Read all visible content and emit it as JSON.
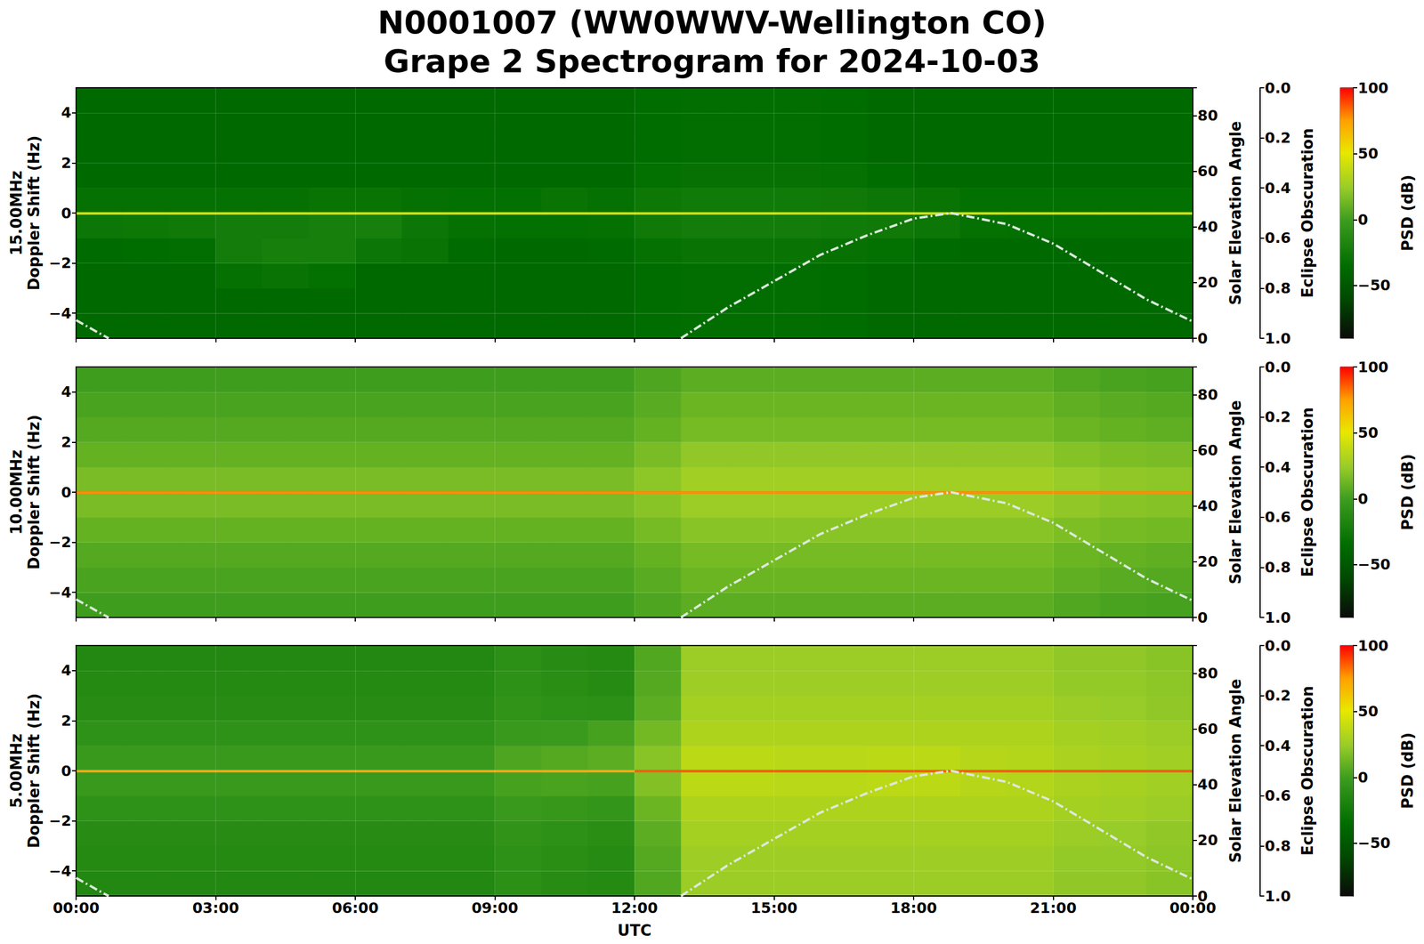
{
  "chart_data": {
    "type": "heatmap",
    "title": "N0001007 (WW0WWV-Wellington CO)",
    "subtitle": "Grape 2 Spectrogram for 2024-10-03",
    "x_edges": [
      0,
      1,
      2,
      3,
      4,
      5,
      6,
      7,
      8,
      9,
      10,
      11,
      12,
      13,
      14,
      15,
      16,
      17,
      18,
      19,
      20,
      21,
      22,
      23,
      24
    ],
    "y_edges": [
      -5,
      -4,
      -3,
      -2,
      -1,
      -0.05,
      0.05,
      1,
      2,
      3,
      4,
      5
    ],
    "xlim": [
      0,
      24
    ],
    "xticks": [
      {
        "value": 0,
        "label": "00:00"
      },
      {
        "value": 3,
        "label": "03:00"
      },
      {
        "value": 6,
        "label": "06:00"
      },
      {
        "value": 9,
        "label": "09:00"
      },
      {
        "value": 12,
        "label": "12:00"
      },
      {
        "value": 15,
        "label": "15:00"
      },
      {
        "value": 18,
        "label": "18:00"
      },
      {
        "value": 21,
        "label": "21:00"
      },
      {
        "value": 24,
        "label": "00:00"
      }
    ],
    "ylim": [
      -5,
      5
    ],
    "yticks": [
      {
        "value": -4,
        "label": "−4"
      },
      {
        "value": -2,
        "label": "−2"
      },
      0,
      2,
      4
    ],
    "ylabel": "Doppler Shift (Hz)",
    "y2label": "Solar Elevation Angle",
    "y2lim": [
      0,
      90
    ],
    "y2ticks": [
      0,
      20,
      40,
      60,
      80
    ],
    "y3label": "Eclipse Obscuration",
    "y3lim": [
      1,
      0
    ],
    "y3ticks": [
      {
        "value": 0,
        "label": "0.0"
      },
      0.2,
      0.4,
      0.6,
      0.8,
      {
        "value": 1,
        "label": "1.0"
      }
    ],
    "colorbar": {
      "label": "PSD (dB)",
      "lim": [
        -90,
        100
      ],
      "ticks": [
        {
          "value": -50,
          "label": "−50"
        },
        0,
        50,
        100
      ]
    },
    "grid": true,
    "panels": [
      {
        "name": "15.00MHz",
        "tick_labels": "y",
        "cells": [
          [
            -38,
            -38,
            -38,
            -38,
            -38,
            -38,
            -38,
            -38,
            -38,
            -38,
            -38,
            -38,
            -35,
            -34,
            -34,
            -34,
            -35,
            -38,
            -38,
            -38,
            -38,
            -38,
            -38,
            -38
          ],
          [
            -38,
            -38,
            -38,
            -38,
            -38,
            -38,
            -38,
            -38,
            -38,
            -38,
            -38,
            -38,
            -35,
            -34,
            -34,
            -34,
            -35,
            -38,
            -38,
            -38,
            -38,
            -38,
            -38,
            -38
          ],
          [
            -38,
            -38,
            -38,
            -32,
            -30,
            -33,
            -38,
            -38,
            -38,
            -38,
            -38,
            -38,
            -35,
            -34,
            -34,
            -34,
            -35,
            -38,
            -38,
            -38,
            -38,
            -38,
            -38,
            -38
          ],
          [
            -36,
            -35,
            -34,
            -24,
            -22,
            -22,
            -28,
            -30,
            -36,
            -37,
            -37,
            -36,
            -32,
            -30,
            -30,
            -30,
            -31,
            -33,
            -36,
            -37,
            -37,
            -37,
            -37,
            -37
          ],
          [
            -28,
            -27,
            -26,
            -24,
            -24,
            -22,
            -22,
            -28,
            -32,
            -33,
            -33,
            -32,
            -26,
            -24,
            -24,
            -24,
            -25,
            -26,
            -28,
            -32,
            -33,
            -33,
            -33,
            -33
          ],
          [
            40,
            40,
            40,
            40,
            40,
            40,
            40,
            40,
            40,
            40,
            40,
            40,
            40,
            40,
            40,
            40,
            40,
            40,
            40,
            40,
            40,
            40,
            40,
            40
          ],
          [
            -32,
            -32,
            -32,
            -32,
            -32,
            -30,
            -30,
            -32,
            -33,
            -33,
            -30,
            -32,
            -27,
            -25,
            -25,
            -25,
            -26,
            -28,
            -30,
            -33,
            -33,
            -33,
            -33,
            -33
          ],
          [
            -37,
            -37,
            -37,
            -37,
            -37,
            -37,
            -37,
            -37,
            -37,
            -37,
            -37,
            -37,
            -33,
            -31,
            -31,
            -31,
            -32,
            -35,
            -37,
            -37,
            -37,
            -37,
            -37,
            -37
          ],
          [
            -38,
            -38,
            -38,
            -38,
            -38,
            -38,
            -38,
            -38,
            -38,
            -38,
            -38,
            -38,
            -35,
            -34,
            -34,
            -34,
            -35,
            -38,
            -38,
            -38,
            -38,
            -38,
            -38,
            -38
          ],
          [
            -38,
            -38,
            -38,
            -38,
            -38,
            -38,
            -38,
            -38,
            -38,
            -38,
            -38,
            -38,
            -35,
            -34,
            -34,
            -34,
            -35,
            -38,
            -38,
            -38,
            -38,
            -38,
            -38,
            -38
          ],
          [
            -38,
            -38,
            -38,
            -38,
            -38,
            -38,
            -38,
            -38,
            -38,
            -38,
            -38,
            -38,
            -35,
            -34,
            -34,
            -34,
            -35,
            -38,
            -38,
            -38,
            -38,
            -38,
            -38,
            -38
          ]
        ]
      },
      {
        "name": "10.00MHz",
        "tick_labels": "y",
        "cells": [
          [
            0,
            0,
            0,
            0,
            0,
            0,
            0,
            0,
            0,
            0,
            0,
            0,
            4,
            8,
            8,
            8,
            8,
            8,
            8,
            8,
            8,
            5,
            3,
            2
          ],
          [
            3,
            3,
            3,
            3,
            3,
            3,
            3,
            3,
            3,
            3,
            3,
            3,
            7,
            12,
            12,
            12,
            12,
            12,
            12,
            12,
            12,
            9,
            7,
            6
          ],
          [
            6,
            6,
            6,
            6,
            6,
            6,
            6,
            6,
            6,
            6,
            6,
            6,
            10,
            15,
            15,
            15,
            15,
            15,
            15,
            15,
            15,
            12,
            10,
            9
          ],
          [
            10,
            10,
            10,
            10,
            10,
            10,
            10,
            10,
            10,
            10,
            10,
            10,
            15,
            20,
            20,
            20,
            20,
            20,
            20,
            20,
            20,
            17,
            15,
            14
          ],
          [
            16,
            16,
            16,
            16,
            16,
            16,
            16,
            16,
            16,
            16,
            16,
            16,
            20,
            25,
            25,
            25,
            25,
            25,
            25,
            25,
            25,
            22,
            20,
            19
          ],
          [
            80,
            80,
            80,
            80,
            80,
            80,
            80,
            80,
            80,
            80,
            80,
            80,
            80,
            80,
            80,
            80,
            80,
            80,
            80,
            80,
            80,
            80,
            80,
            80
          ],
          [
            16,
            16,
            16,
            16,
            16,
            16,
            16,
            16,
            16,
            16,
            16,
            16,
            21,
            27,
            27,
            27,
            27,
            27,
            27,
            27,
            27,
            24,
            22,
            21
          ],
          [
            10,
            10,
            10,
            10,
            10,
            10,
            10,
            10,
            10,
            10,
            10,
            10,
            16,
            22,
            22,
            22,
            22,
            22,
            22,
            22,
            22,
            19,
            17,
            16
          ],
          [
            6,
            6,
            6,
            6,
            6,
            6,
            6,
            6,
            6,
            6,
            6,
            6,
            10,
            15,
            15,
            15,
            15,
            15,
            15,
            15,
            15,
            12,
            10,
            9
          ],
          [
            3,
            3,
            3,
            3,
            3,
            3,
            3,
            3,
            3,
            3,
            3,
            3,
            7,
            12,
            12,
            12,
            12,
            12,
            12,
            12,
            12,
            9,
            7,
            6
          ],
          [
            0,
            0,
            0,
            0,
            0,
            0,
            0,
            0,
            0,
            0,
            0,
            0,
            4,
            8,
            8,
            8,
            8,
            8,
            8,
            8,
            8,
            5,
            3,
            2
          ]
        ]
      },
      {
        "name": "5.00MHz",
        "xlabel": "UTC",
        "cells": [
          [
            -15,
            -15,
            -15,
            -15,
            -15,
            -15,
            -15,
            -15,
            -15,
            -10,
            -12,
            -14,
            5,
            25,
            25,
            25,
            25,
            25,
            25,
            25,
            25,
            22,
            22,
            20
          ],
          [
            -14,
            -14,
            -14,
            -14,
            -14,
            -14,
            -14,
            -14,
            -14,
            -9,
            -11,
            -13,
            6,
            26,
            26,
            26,
            26,
            26,
            26,
            26,
            26,
            23,
            23,
            21
          ],
          [
            -12,
            -12,
            -12,
            -12,
            -12,
            -12,
            -12,
            -12,
            -12,
            -7,
            -9,
            -11,
            8,
            28,
            28,
            28,
            28,
            28,
            28,
            28,
            28,
            25,
            24,
            22
          ],
          [
            -8,
            -8,
            -8,
            -8,
            -8,
            -8,
            -8,
            -8,
            -8,
            -3,
            -4,
            -6,
            12,
            31,
            31,
            31,
            31,
            31,
            31,
            31,
            31,
            28,
            27,
            25
          ],
          [
            -3,
            -3,
            -3,
            -3,
            -3,
            -3,
            -3,
            -3,
            -3,
            2,
            3,
            2,
            18,
            36,
            36,
            35,
            35,
            36,
            36,
            34,
            33,
            30,
            29,
            27
          ],
          [
            75,
            75,
            75,
            75,
            75,
            75,
            75,
            75,
            75,
            75,
            75,
            75,
            88,
            88,
            88,
            88,
            88,
            88,
            88,
            88,
            88,
            88,
            88,
            88
          ],
          [
            -3,
            -3,
            -3,
            -3,
            -3,
            -3,
            -3,
            -3,
            -3,
            4,
            6,
            8,
            20,
            36,
            36,
            35,
            35,
            36,
            36,
            34,
            33,
            30,
            29,
            27
          ],
          [
            -8,
            -8,
            -8,
            -8,
            -8,
            -8,
            -8,
            -8,
            -8,
            -3,
            -2,
            2,
            14,
            31,
            31,
            31,
            31,
            31,
            31,
            31,
            31,
            28,
            27,
            25
          ],
          [
            -12,
            -12,
            -12,
            -12,
            -12,
            -12,
            -12,
            -12,
            -12,
            -7,
            -9,
            -10,
            8,
            28,
            28,
            28,
            28,
            28,
            28,
            28,
            28,
            25,
            24,
            22
          ],
          [
            -14,
            -14,
            -14,
            -14,
            -14,
            -14,
            -14,
            -14,
            -14,
            -9,
            -11,
            -13,
            6,
            26,
            26,
            26,
            26,
            26,
            26,
            26,
            26,
            23,
            23,
            21
          ],
          [
            -15,
            -15,
            -15,
            -15,
            -15,
            -15,
            -15,
            -15,
            -15,
            -10,
            -12,
            -14,
            5,
            25,
            25,
            25,
            25,
            25,
            25,
            25,
            25,
            22,
            22,
            20
          ]
        ]
      }
    ],
    "solar_elevation": {
      "axis": "y2",
      "color": "#dce8dc",
      "line_style": "dashdot",
      "x": [
        0,
        0.5,
        0.7,
        6,
        13,
        14,
        15,
        16,
        17,
        18,
        18.8,
        20,
        21,
        22,
        23,
        24
      ],
      "values": [
        6.5,
        1.8,
        0,
        null,
        0,
        11,
        20.5,
        30,
        37,
        43,
        45,
        41,
        34,
        24,
        14,
        6
      ]
    }
  }
}
